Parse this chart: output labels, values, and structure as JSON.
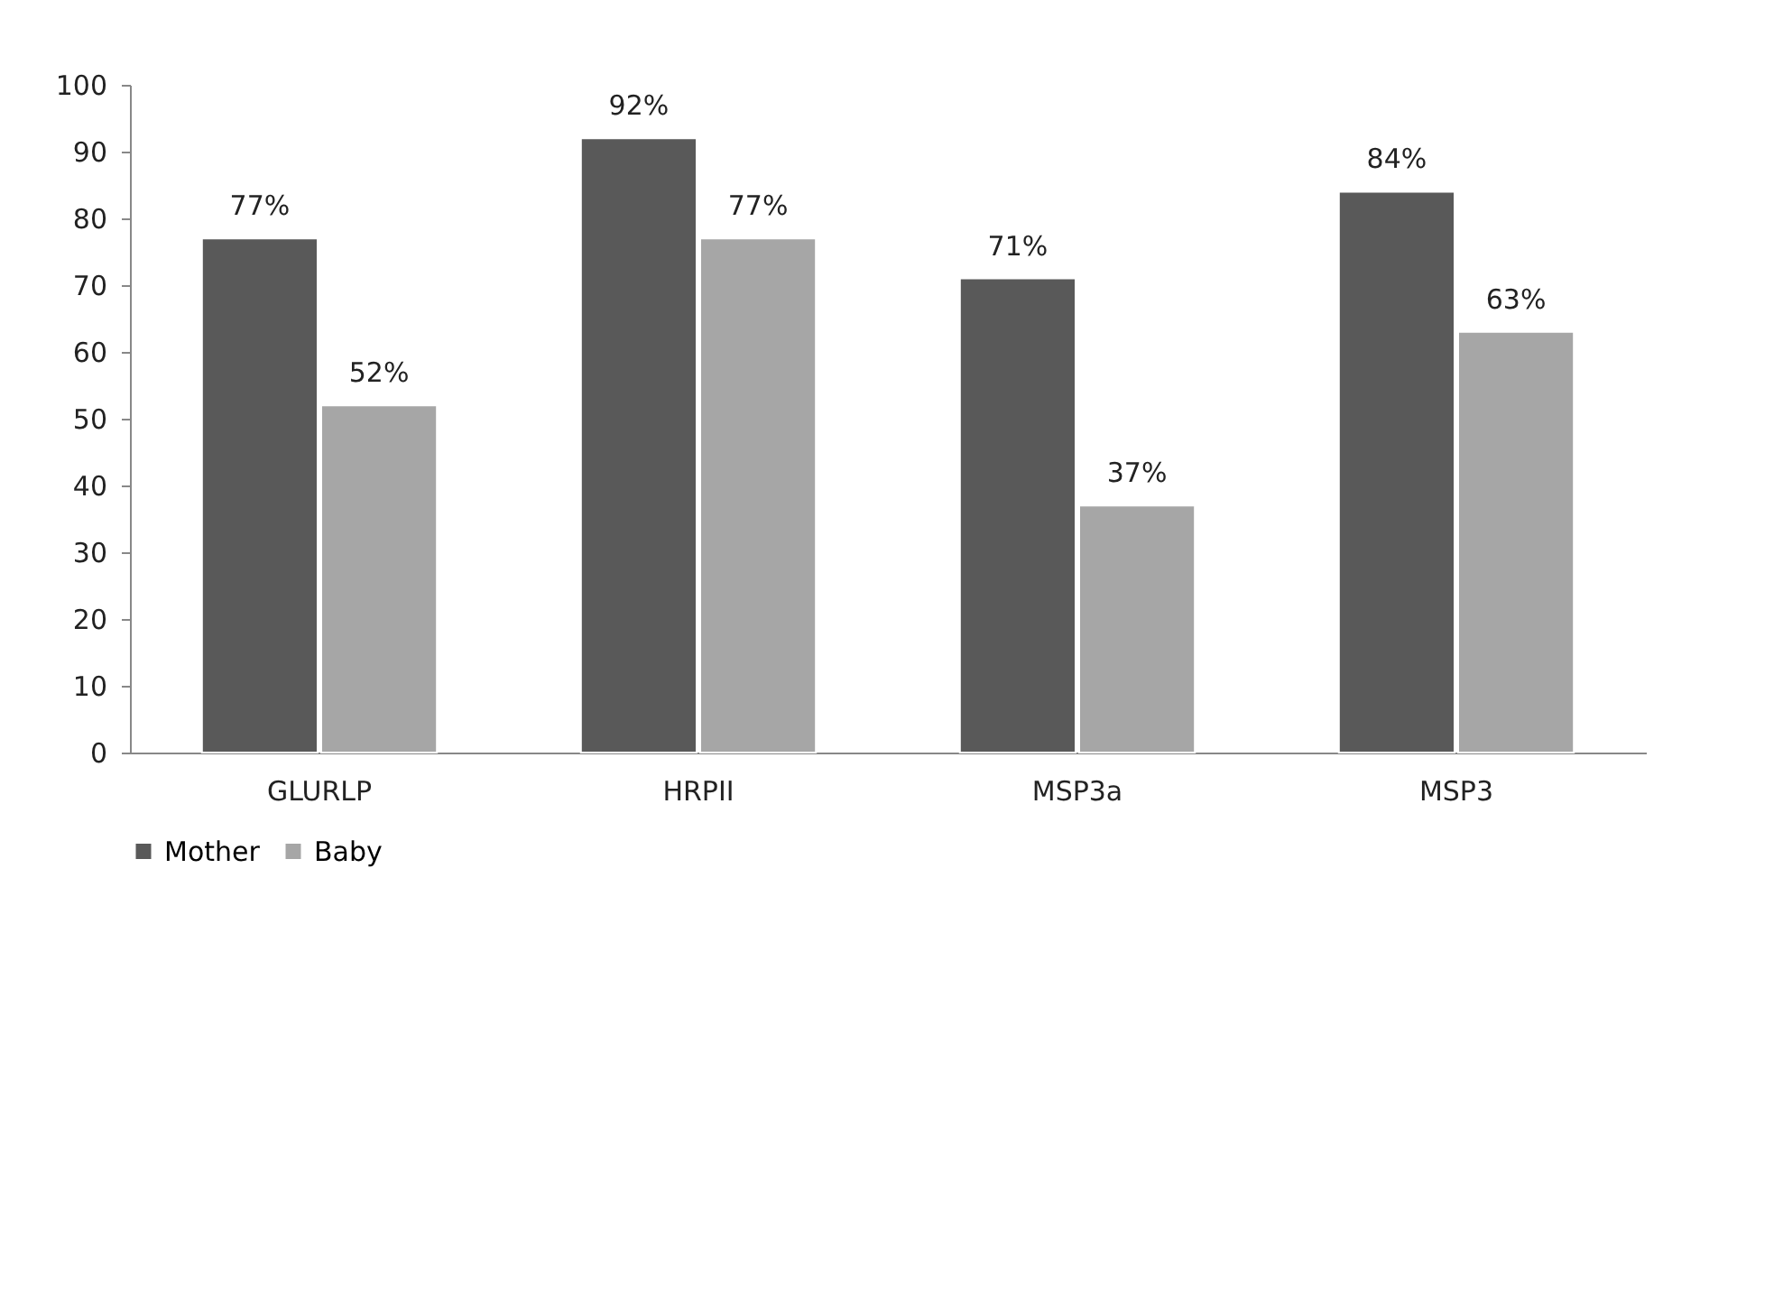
{
  "chart_data": {
    "type": "bar",
    "categories": [
      "GLURLP",
      "HRPII",
      "MSP3a",
      "MSP3"
    ],
    "series": [
      {
        "name": "Mother",
        "color": "#595959",
        "values": [
          77,
          92,
          71,
          84
        ],
        "value_labels": [
          "77%",
          "92%",
          "71%",
          "84%"
        ]
      },
      {
        "name": "Baby",
        "color": "#a6a6a6",
        "values": [
          52,
          77,
          37,
          63
        ],
        "value_labels": [
          "52%",
          "77%",
          "37%",
          "63%"
        ]
      }
    ],
    "ylim": [
      0,
      100
    ],
    "yticks": [
      0,
      10,
      20,
      30,
      40,
      50,
      60,
      70,
      80,
      90,
      100
    ],
    "grid": false,
    "legend": "bottom"
  }
}
